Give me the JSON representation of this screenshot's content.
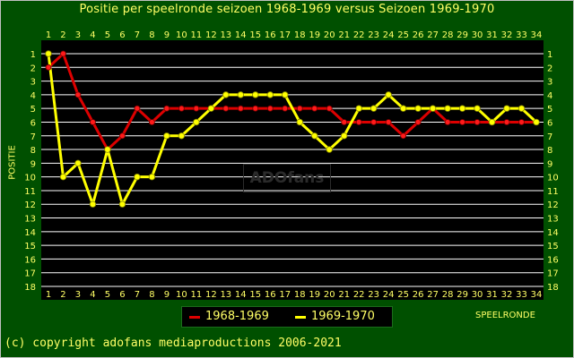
{
  "title": "Positie per speelronde seizoen 1968-1969 versus Seizoen 1969-1970",
  "ylabel": "POSITIE",
  "xlabel": "SPEELRONDE",
  "watermark": "ADOfans",
  "copyright": "(c) copyright adofans mediaproductions 2006-2021",
  "colors": {
    "background": "#005000",
    "plot": "#000000",
    "text": "#ffff66",
    "grid": "#ffffff"
  },
  "chart_data": {
    "type": "line",
    "x": [
      1,
      2,
      3,
      4,
      5,
      6,
      7,
      8,
      9,
      10,
      11,
      12,
      13,
      14,
      15,
      16,
      17,
      18,
      19,
      20,
      21,
      22,
      23,
      24,
      25,
      26,
      27,
      28,
      29,
      30,
      31,
      32,
      33,
      34
    ],
    "ylim": [
      1,
      18
    ],
    "y_inverted": true,
    "series": [
      {
        "name": "1968-1969",
        "color": "#dd0000",
        "values": [
          2,
          1,
          4,
          6,
          8,
          7,
          5,
          6,
          5,
          5,
          5,
          5,
          5,
          5,
          5,
          5,
          5,
          5,
          5,
          5,
          6,
          6,
          6,
          6,
          7,
          6,
          5,
          6,
          6,
          6,
          6,
          6,
          6,
          6
        ]
      },
      {
        "name": "1969-1970",
        "color": "#ffff00",
        "values": [
          1,
          10,
          9,
          12,
          8,
          12,
          10,
          10,
          7,
          7,
          6,
          5,
          4,
          4,
          4,
          4,
          4,
          6,
          7,
          8,
          7,
          5,
          5,
          4,
          5,
          5,
          5,
          5,
          5,
          5,
          6,
          5,
          5,
          6
        ]
      }
    ],
    "legend": "bottom-center"
  }
}
